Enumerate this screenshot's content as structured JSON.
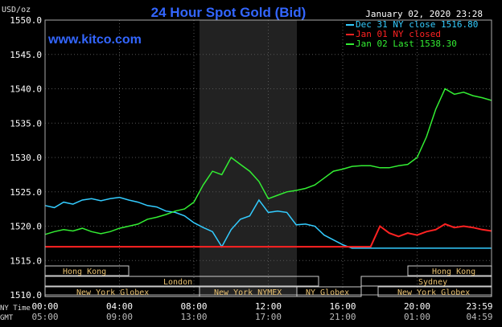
{
  "chart_data": {
    "type": "line",
    "title": "24 Hour Spot Gold (Bid)",
    "unit_label": "USD/oz",
    "timestamp": "January 02, 2020 23:28",
    "watermark": "www.kitco.com",
    "ylim": [
      1510,
      1550
    ],
    "y_ticks": [
      "1550.0",
      "1545.0",
      "1540.0",
      "1535.0",
      "1530.0",
      "1525.0",
      "1520.0",
      "1515.0",
      "1510.0"
    ],
    "x_ticks_ny": [
      "00:00",
      "04:00",
      "08:00",
      "12:00",
      "16:00",
      "20:00",
      "23:59"
    ],
    "x_ticks_gmt": [
      "05:00",
      "09:00",
      "13:00",
      "17:00",
      "21:00",
      "01:00",
      "04:59"
    ],
    "x_row_label_top": "NY Time",
    "x_row_label_bottom": "GMT",
    "legend": [
      {
        "label": "Dec 31 NY close 1516.80",
        "color": "#33ccff"
      },
      {
        "label": "Jan 01 NY closed",
        "color": "#ff2222"
      },
      {
        "label": "Jan 02 Last 1538.30",
        "color": "#33ee33"
      }
    ],
    "market_session_labels": {
      "hong_kong_1": "Hong Kong",
      "london": "London",
      "ny_globex_1": "New York Globex",
      "ny_nymex": "New York NYMEX",
      "ny_globex_2": "NY Globex",
      "hong_kong_2": "Hong Kong",
      "sydney": "Sydney",
      "ny_globex_3": "New York Globex"
    },
    "series": [
      {
        "name": "Dec 31 NY close 1516.80",
        "color": "#33ccff",
        "x": [
          0,
          0.5,
          1,
          1.5,
          2,
          2.5,
          3,
          3.5,
          4,
          4.5,
          5,
          5.5,
          6,
          6.5,
          7,
          7.5,
          8,
          8.5,
          9,
          9.5,
          10,
          10.5,
          11,
          11.5,
          12,
          12.5,
          13,
          13.5,
          14,
          14.5,
          15,
          15.5,
          16,
          16.5,
          17,
          17.5,
          18,
          18.5,
          19,
          19.5,
          20,
          20.5,
          21,
          21.5,
          22,
          22.5,
          23,
          23.5,
          24
        ],
        "y": [
          1523,
          1522.7,
          1523.5,
          1523.2,
          1523.8,
          1524,
          1523.7,
          1524,
          1524.2,
          1523.8,
          1523.5,
          1523,
          1522.8,
          1522.2,
          1522,
          1521.5,
          1520.5,
          1519.8,
          1519.2,
          1517,
          1519.5,
          1521,
          1521.5,
          1523.8,
          1522,
          1522.2,
          1522,
          1520.2,
          1520.3,
          1520,
          1518.7,
          1518,
          1517.3,
          1516.8,
          1516.8,
          1516.8,
          1516.8,
          1516.8,
          1516.8,
          1516.8,
          1516.8,
          1516.8,
          1516.8,
          1516.8,
          1516.8,
          1516.8,
          1516.8,
          1516.8,
          1516.8
        ]
      },
      {
        "name": "Jan 01 NY closed",
        "color": "#ff2222",
        "x": [
          0,
          2,
          4,
          6,
          8,
          10,
          12,
          14,
          16,
          17.5,
          17.5,
          18,
          18.5,
          19,
          19.5,
          20,
          20.5,
          21,
          21.5,
          22,
          22.5,
          23,
          23.5,
          24
        ],
        "y": [
          1517,
          1517,
          1517,
          1517,
          1517,
          1517,
          1517,
          1517,
          1517,
          1517,
          1517,
          1520,
          1519,
          1518.5,
          1519,
          1518.7,
          1519.2,
          1519.5,
          1520.3,
          1519.8,
          1520,
          1519.8,
          1519.5,
          1519.3
        ]
      },
      {
        "name": "Jan 02 Last 1538.30",
        "color": "#33ee33",
        "x": [
          0,
          0.5,
          1,
          1.5,
          2,
          2.5,
          3,
          3.5,
          4,
          4.5,
          5,
          5.5,
          6,
          6.5,
          7,
          7.5,
          8,
          8.5,
          9,
          9.5,
          10,
          10.5,
          11,
          11.5,
          12,
          12.5,
          13,
          13.5,
          14,
          14.5,
          15,
          15.5,
          16,
          16.5,
          17,
          17.5,
          18,
          18.5,
          19,
          19.5,
          20,
          20.5,
          21,
          21.5,
          22,
          22.5,
          23,
          23.5,
          24
        ],
        "y": [
          1518.8,
          1519.2,
          1519.5,
          1519.3,
          1519.7,
          1519.2,
          1518.9,
          1519.2,
          1519.7,
          1520,
          1520.3,
          1521,
          1521.3,
          1521.7,
          1522.2,
          1522.5,
          1523.5,
          1526,
          1528,
          1527.5,
          1530,
          1529,
          1528,
          1526.5,
          1524,
          1524.5,
          1525,
          1525.2,
          1525.5,
          1526,
          1527,
          1528,
          1528.3,
          1528.7,
          1528.8,
          1528.8,
          1528.5,
          1528.5,
          1528.8,
          1529,
          1530,
          1533,
          1537,
          1540,
          1539.2,
          1539.5,
          1539,
          1538.7,
          1538.3
        ]
      }
    ]
  }
}
